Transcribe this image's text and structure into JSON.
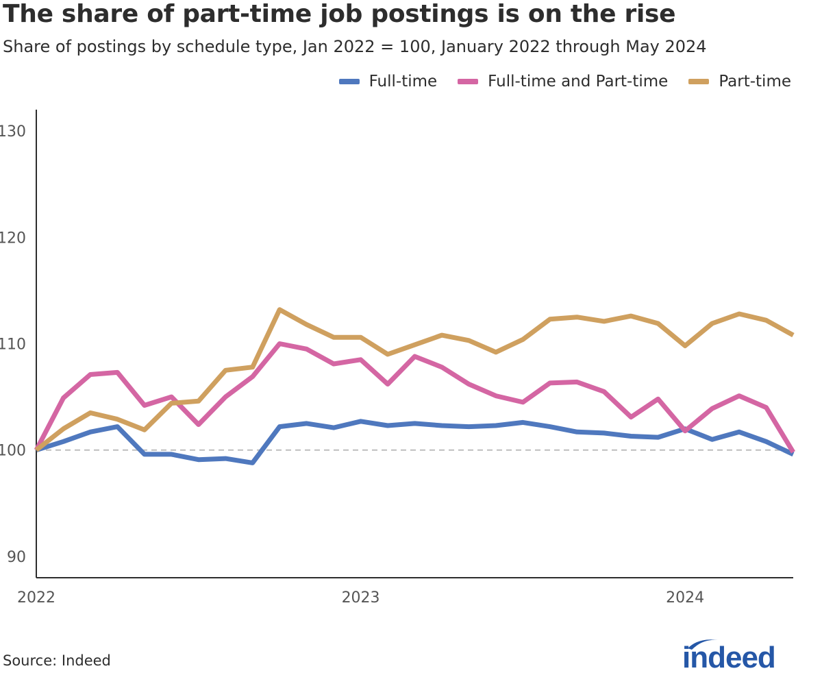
{
  "chart_data": {
    "type": "line",
    "title": "The share of part-time job postings is on the rise",
    "subtitle": "Share of postings by schedule type, Jan 2022 = 100, January 2022 through May 2024",
    "ylim": [
      88,
      132
    ],
    "yticks": [
      90,
      100,
      110,
      120,
      130
    ],
    "xticks": [
      {
        "label": "2022",
        "index": 0
      },
      {
        "label": "2023",
        "index": 12
      },
      {
        "label": "2024",
        "index": 24
      }
    ],
    "reference_line": 100,
    "x": [
      "2022-01",
      "2022-02",
      "2022-03",
      "2022-04",
      "2022-05",
      "2022-06",
      "2022-07",
      "2022-08",
      "2022-09",
      "2022-10",
      "2022-11",
      "2022-12",
      "2023-01",
      "2023-02",
      "2023-03",
      "2023-04",
      "2023-05",
      "2023-06",
      "2023-07",
      "2023-08",
      "2023-09",
      "2023-10",
      "2023-11",
      "2023-12",
      "2024-01",
      "2024-02",
      "2024-03",
      "2024-04",
      "2024-05"
    ],
    "series": [
      {
        "name": "Full-time",
        "color": "#4f78be",
        "values": [
          100,
          100.8,
          101.7,
          102.2,
          99.6,
          99.6,
          99.1,
          99.2,
          98.8,
          102.2,
          102.5,
          102.1,
          102.7,
          102.3,
          102.5,
          102.3,
          102.2,
          102.3,
          102.6,
          102.2,
          101.7,
          101.6,
          101.3,
          101.2,
          102.0,
          101.0,
          101.7,
          100.8,
          99.6
        ]
      },
      {
        "name": "Full-time and Part-time",
        "color": "#d466a3",
        "values": [
          100,
          104.9,
          107.1,
          107.3,
          104.2,
          105.0,
          102.4,
          105.0,
          106.9,
          110.0,
          109.5,
          108.1,
          108.5,
          106.2,
          108.8,
          107.8,
          106.2,
          105.1,
          104.5,
          106.3,
          106.4,
          105.5,
          103.1,
          104.8,
          101.8,
          103.9,
          105.1,
          104.0,
          99.8
        ]
      },
      {
        "name": "Part-time",
        "color": "#cfa05f",
        "values": [
          100,
          102.0,
          103.5,
          102.9,
          101.9,
          104.4,
          104.6,
          107.5,
          107.8,
          113.2,
          111.8,
          110.6,
          110.6,
          109.0,
          109.9,
          110.8,
          110.3,
          109.2,
          110.4,
          112.3,
          112.5,
          112.1,
          112.6,
          111.9,
          109.8,
          111.9,
          112.8,
          112.2,
          110.8
        ]
      }
    ]
  },
  "source": "Source: Indeed",
  "logo_text": "indeed",
  "logo_color": "#2557a7"
}
